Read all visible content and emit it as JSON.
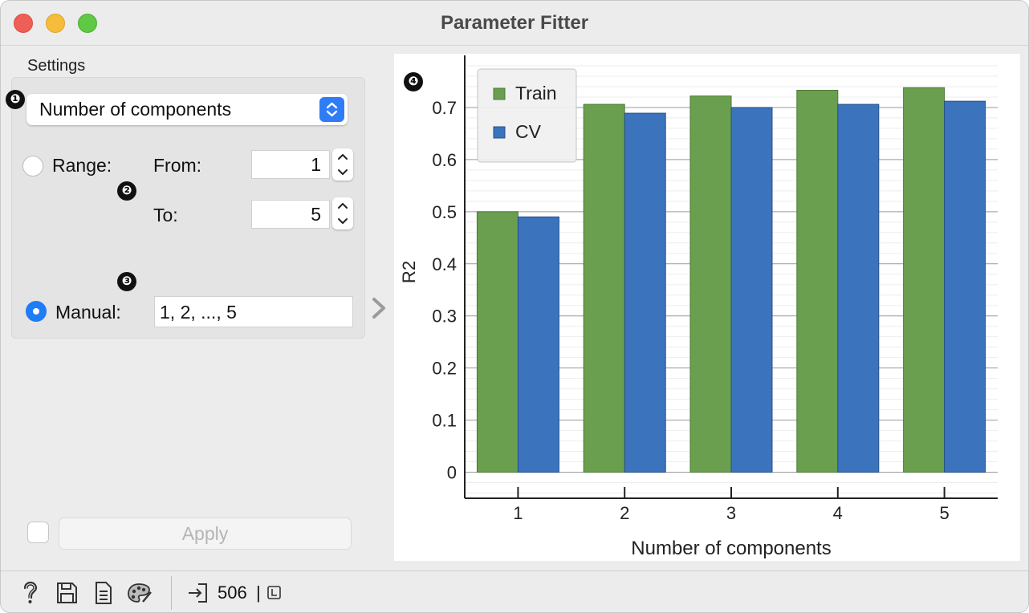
{
  "window": {
    "title": "Parameter Fitter"
  },
  "settings": {
    "label": "Settings",
    "parameter": "Number of components",
    "range_label": "Range:",
    "from_label": "From:",
    "from_value": "1",
    "to_label": "To:",
    "to_value": "5",
    "manual_label": "Manual:",
    "manual_value": "1, 2, ..., 5",
    "range_selected": false,
    "manual_selected": true,
    "apply_label": "Apply",
    "auto_apply_checked": false
  },
  "badges": [
    "❶",
    "❷",
    "❸",
    "❹"
  ],
  "statusbar": {
    "count": "506",
    "separator": "|"
  },
  "icons": [
    "help-icon",
    "save-icon",
    "report-icon",
    "palette-icon",
    "input-icon",
    "output-icon"
  ],
  "colors": {
    "train": "#6a9f4f",
    "cv": "#3b74bd",
    "accent": "#1f7cf4"
  },
  "chart_data": {
    "type": "bar",
    "categories": [
      "1",
      "2",
      "3",
      "4",
      "5"
    ],
    "series": [
      {
        "name": "Train",
        "values": [
          0.5,
          0.706,
          0.722,
          0.733,
          0.738
        ]
      },
      {
        "name": "CV",
        "values": [
          0.49,
          0.689,
          0.7,
          0.706,
          0.712
        ]
      }
    ],
    "xlabel": "Number of components",
    "ylabel": "R2",
    "ylim": [
      -0.05,
      0.8
    ],
    "yticks": [
      0,
      0.1,
      0.2,
      0.3,
      0.4,
      0.5,
      0.6,
      0.7
    ],
    "ytick_labels": [
      "0",
      "0.1",
      "0.2",
      "0.3",
      "0.4",
      "0.5",
      "0.6",
      "0.7"
    ],
    "grid": true,
    "legend": "top-left"
  }
}
